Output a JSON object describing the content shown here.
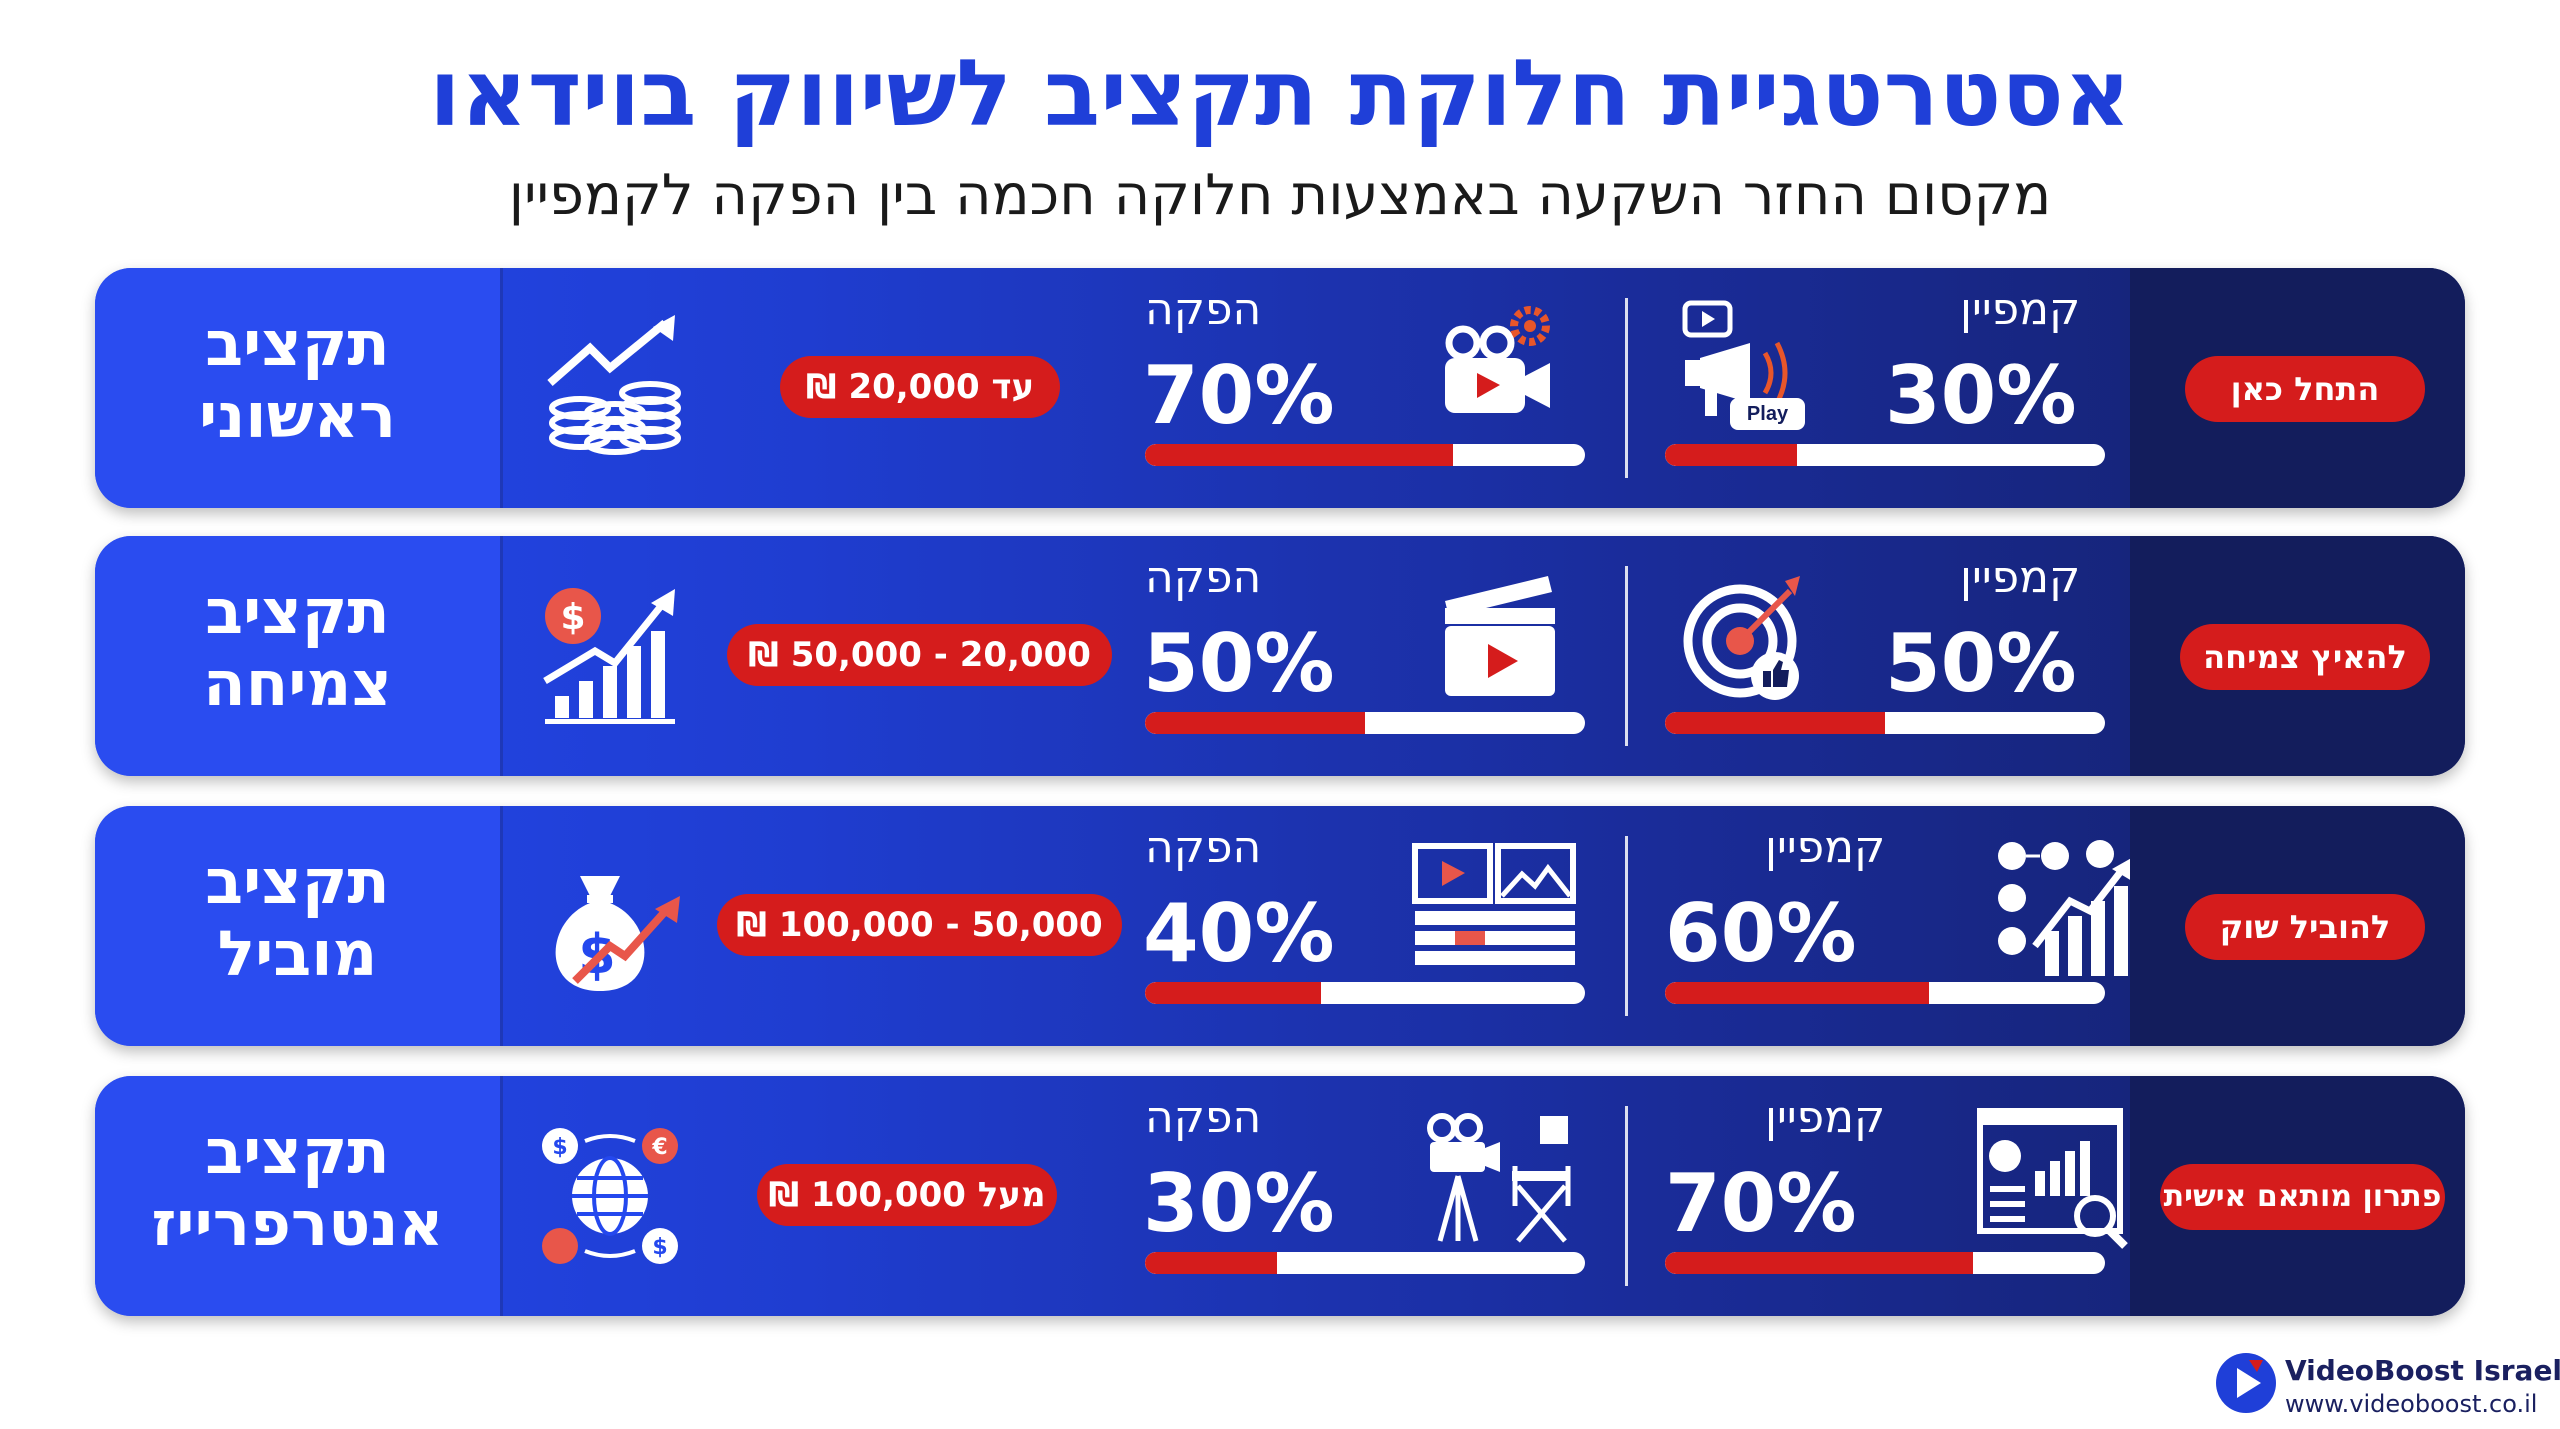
{
  "header": {
    "title": "אסטרטגיית חלוקת תקציב לשיווק בוידאו",
    "subtitle": "מקסום החזר השקעה באמצעות חלוקה חכמה בין הפקה לקמפיין"
  },
  "colors": {
    "accent_blue": "#1f3fd8",
    "accent_red": "#d51c1c",
    "panel_dark": "#131d5c"
  },
  "tiers": [
    {
      "name_line1": "תקציב",
      "name_line2": "ראשוני",
      "range": "עד 20,000 ₪",
      "big_icon": "coins-growth-icon",
      "production": {
        "label": "הפקה",
        "percent_text": "70%",
        "percent": 70,
        "icon": "video-camera-gear-icon"
      },
      "campaign": {
        "label": "קמפיין",
        "percent_text": "30%",
        "percent": 30,
        "icon": "megaphone-play-icon",
        "icon_text": "Play"
      },
      "cta": "התחל כאן"
    },
    {
      "name_line1": "תקציב",
      "name_line2": "צמיחה",
      "range": "20,000 - 50,000 ₪",
      "big_icon": "dollar-chart-growth-icon",
      "production": {
        "label": "הפקה",
        "percent_text": "50%",
        "percent": 50,
        "icon": "clapperboard-icon"
      },
      "campaign": {
        "label": "קמפיין",
        "percent_text": "50%",
        "percent": 50,
        "icon": "target-like-icon"
      },
      "cta": "להאיץ צמיחה"
    },
    {
      "name_line1": "תקציב",
      "name_line2": "מוביל",
      "range": "50,000 - 100,000 ₪",
      "big_icon": "money-bag-growth-icon",
      "production": {
        "label": "הפקה",
        "percent_text": "40%",
        "percent": 40,
        "icon": "video-editing-timeline-icon"
      },
      "campaign": {
        "label": "קמפיין",
        "percent_text": "60%",
        "percent": 60,
        "icon": "social-media-growth-icon"
      },
      "cta": "להוביל שוק"
    },
    {
      "name_line1": "תקציב",
      "name_line2": "אנטרפרייז",
      "range": "מעל 100,000 ₪",
      "big_icon": "global-currency-icon",
      "production": {
        "label": "הפקה",
        "percent_text": "30%",
        "percent": 30,
        "icon": "film-studio-icon"
      },
      "campaign": {
        "label": "קמפיין",
        "percent_text": "70%",
        "percent": 70,
        "icon": "analytics-dashboard-icon"
      },
      "cta": "פתרון מותאם אישית"
    }
  ],
  "brand": {
    "name": "VideoBoost Israel",
    "url": "www.videoboost.co.il",
    "logo": "videoboost-play-logo-icon"
  }
}
